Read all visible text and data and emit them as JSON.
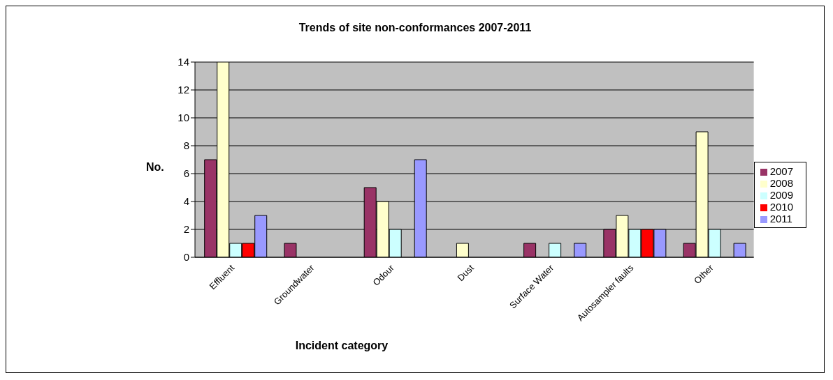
{
  "chart_data": {
    "type": "bar",
    "title": "Trends of site non-conformances 2007-2011",
    "xlabel": "Incident category",
    "ylabel": "No.",
    "categories": [
      "Effluent",
      "Groundwater",
      "Odour",
      "Dust",
      "Surface Water",
      "Autosampler faults",
      "Other"
    ],
    "series": [
      {
        "name": "2007",
        "color": "#993366",
        "values": [
          7,
          1,
          5,
          0,
          1,
          2,
          1
        ]
      },
      {
        "name": "2008",
        "color": "#ffffcc",
        "values": [
          14,
          0,
          4,
          1,
          0,
          3,
          9
        ]
      },
      {
        "name": "2009",
        "color": "#ccffff",
        "values": [
          1,
          0,
          2,
          0,
          1,
          2,
          2
        ]
      },
      {
        "name": "2010",
        "color": "#ff0000",
        "values": [
          1,
          0,
          0,
          0,
          0,
          2,
          0
        ]
      },
      {
        "name": "2011",
        "color": "#9999ff",
        "values": [
          3,
          0,
          7,
          0,
          1,
          2,
          1
        ]
      }
    ],
    "ylim": [
      0,
      14
    ],
    "yticks": [
      0,
      2,
      4,
      6,
      8,
      10,
      12,
      14
    ],
    "grid": "y",
    "legend": "right"
  }
}
